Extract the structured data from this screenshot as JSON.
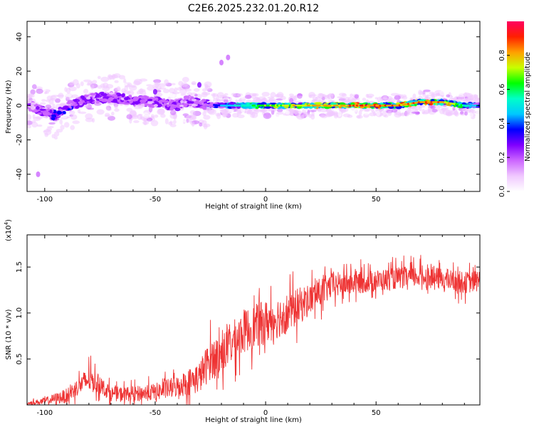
{
  "chart_data": [
    {
      "type": "heatmap",
      "title": "C2E6.2025.232.01.20.R12",
      "xlabel": "Height of straight line (km)",
      "ylabel": "Frequency (Hz)",
      "xlim": [
        -108,
        97
      ],
      "ylim": [
        -50,
        49
      ],
      "xticks": [
        -100,
        -50,
        0,
        50
      ],
      "yticks": [
        -40,
        -20,
        0,
        20,
        40
      ],
      "colorbar": {
        "label": "Normalized spectral amplitude",
        "range": [
          0,
          1
        ],
        "ticks": [
          "0.0",
          "0.2",
          "0.4",
          "0.6",
          "0.8"
        ],
        "colors": [
          "#ffffff",
          "#f0c8ff",
          "#cc66ff",
          "#8000ff",
          "#0000ff",
          "#00c8ff",
          "#00ffc8",
          "#00ff00",
          "#c8ff00",
          "#ffa000",
          "#ff2000",
          "#ff0060"
        ]
      },
      "ridge": {
        "x": [
          -108,
          -100,
          -95,
          -90,
          -80,
          -70,
          -60,
          -50,
          -40,
          -35,
          -30,
          -20,
          -10,
          0,
          20,
          40,
          60,
          70,
          80,
          90,
          97
        ],
        "freq": [
          1,
          -4,
          -6,
          -1,
          4,
          5,
          3,
          2,
          0,
          3,
          1,
          0,
          0,
          0,
          0,
          0,
          0,
          2,
          2,
          0,
          0
        ],
        "amplitude": [
          0.25,
          0.3,
          0.35,
          0.35,
          0.3,
          0.3,
          0.3,
          0.3,
          0.3,
          0.3,
          0.3,
          0.45,
          0.6,
          0.7,
          0.85,
          0.9,
          0.9,
          0.9,
          0.9,
          0.6,
          0.4
        ]
      },
      "features": [
        {
          "x": -20,
          "freq": 25,
          "amplitude": 0.1
        },
        {
          "x": -17,
          "freq": 28,
          "amplitude": 0.05
        },
        {
          "x": -30,
          "freq": 12,
          "amplitude": 0.2
        },
        {
          "x": -50,
          "freq": 8,
          "amplitude": 0.2
        },
        {
          "x": -103,
          "freq": -40,
          "amplitude": 0.05
        }
      ]
    },
    {
      "type": "line",
      "xlabel": "Height of straight line (km)",
      "ylabel": "SNR (10 * v/v)",
      "yscale_label": "(x10",
      "yscale_exp": "4",
      "xlim": [
        -108,
        97
      ],
      "ylim": [
        0,
        1.85
      ],
      "xticks": [
        -100,
        -50,
        0,
        50
      ],
      "yticks": [
        "0.5",
        "1.0",
        "1.5"
      ],
      "color": "#ee3333",
      "envelope": {
        "x": [
          -108,
          -100,
          -90,
          -85,
          -80,
          -75,
          -70,
          -60,
          -50,
          -40,
          -30,
          -25,
          -20,
          -10,
          0,
          10,
          20,
          30,
          40,
          50,
          60,
          70,
          80,
          90,
          97
        ],
        "value": [
          0.02,
          0.04,
          0.1,
          0.2,
          0.28,
          0.22,
          0.12,
          0.12,
          0.14,
          0.2,
          0.3,
          0.5,
          0.55,
          0.8,
          0.9,
          1.0,
          1.15,
          1.3,
          1.33,
          1.35,
          1.38,
          1.4,
          1.37,
          1.33,
          1.35
        ],
        "spread": [
          0.02,
          0.05,
          0.1,
          0.12,
          0.18,
          0.12,
          0.1,
          0.1,
          0.12,
          0.15,
          0.22,
          0.28,
          0.28,
          0.3,
          0.3,
          0.28,
          0.22,
          0.18,
          0.16,
          0.15,
          0.15,
          0.15,
          0.15,
          0.15,
          0.15
        ]
      }
    }
  ]
}
